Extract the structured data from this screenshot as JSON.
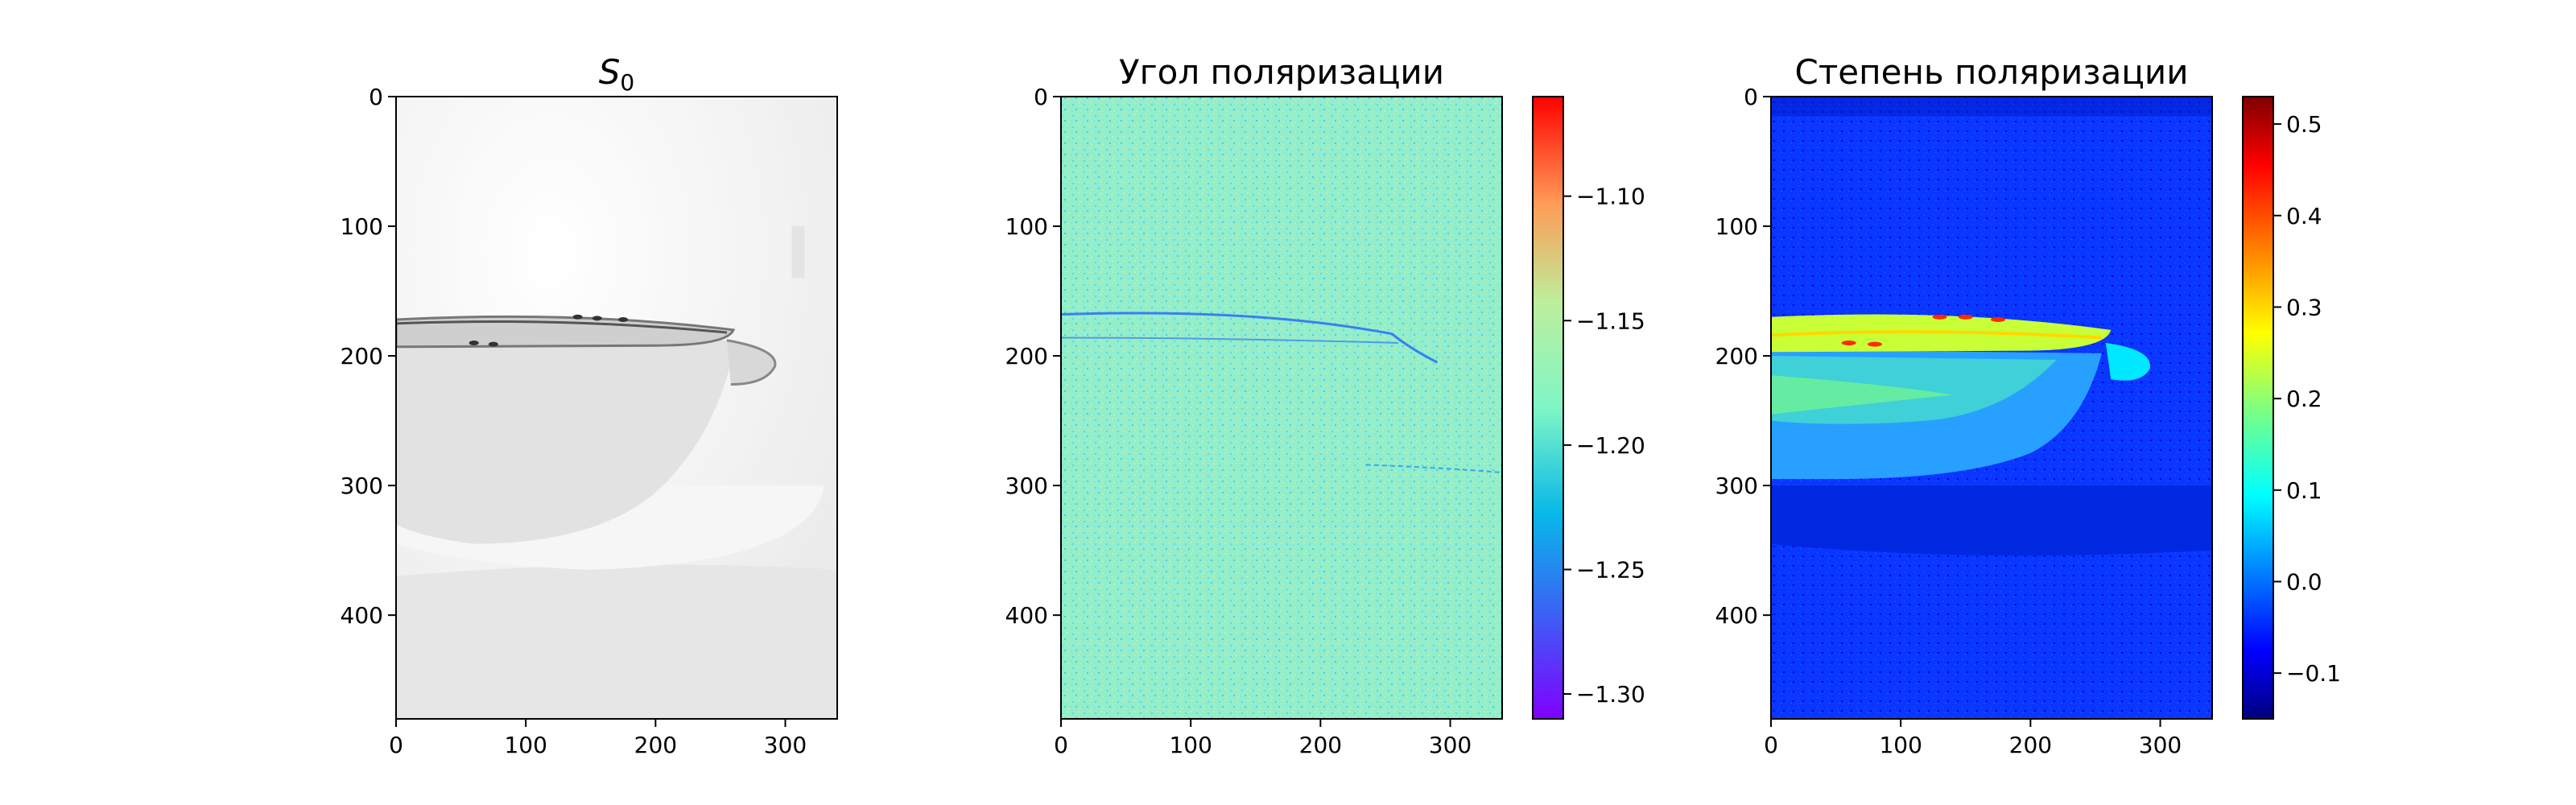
{
  "chart_data": [
    {
      "type": "heatmap",
      "title": "S_0",
      "title_parts": {
        "base": "S",
        "sub": "0"
      },
      "colormap": "gray_r",
      "image_shape": [
        480,
        340
      ],
      "xlim": [
        0,
        340
      ],
      "ylim": [
        480,
        0
      ],
      "xticks": [
        0,
        100,
        200,
        300
      ],
      "yticks": [
        0,
        100,
        200,
        300,
        400
      ],
      "xlabel": "",
      "ylabel": "",
      "colorbar": null,
      "content": "cup with handle on saucer, bright background"
    },
    {
      "type": "heatmap",
      "title": "Угол поляризации",
      "colormap": "rainbow",
      "image_shape": [
        480,
        340
      ],
      "xlim": [
        0,
        340
      ],
      "ylim": [
        480,
        0
      ],
      "xticks": [
        0,
        100,
        200,
        300
      ],
      "yticks": [
        0,
        100,
        200,
        300,
        400
      ],
      "xlabel": "",
      "ylabel": "",
      "colorbar": {
        "range": [
          -1.31,
          -1.06
        ],
        "ticks": [
          -1.1,
          -1.15,
          -1.2,
          -1.25,
          -1.3
        ],
        "tick_labels": [
          "−1.10",
          "−1.15",
          "−1.20",
          "−1.25",
          "−1.30"
        ]
      },
      "typical_value": -1.19
    },
    {
      "type": "heatmap",
      "title": "Степень поляризации",
      "colormap": "jet",
      "image_shape": [
        480,
        340
      ],
      "xlim": [
        0,
        340
      ],
      "ylim": [
        480,
        0
      ],
      "xticks": [
        0,
        100,
        200,
        300
      ],
      "yticks": [
        0,
        100,
        200,
        300,
        400
      ],
      "xlabel": "",
      "ylabel": "",
      "colorbar": {
        "range": [
          -0.15,
          0.53
        ],
        "ticks": [
          0.5,
          0.4,
          0.3,
          0.2,
          0.1,
          0.0,
          -0.1
        ],
        "tick_labels": [
          "0.5",
          "0.4",
          "0.3",
          "0.2",
          "0.1",
          "0.0",
          "−0.1"
        ]
      },
      "region_values": {
        "background": -0.05,
        "cup_rim": 0.22,
        "cup_body": 0.15,
        "shadow": -0.08,
        "hot_spots": 0.45
      }
    }
  ]
}
